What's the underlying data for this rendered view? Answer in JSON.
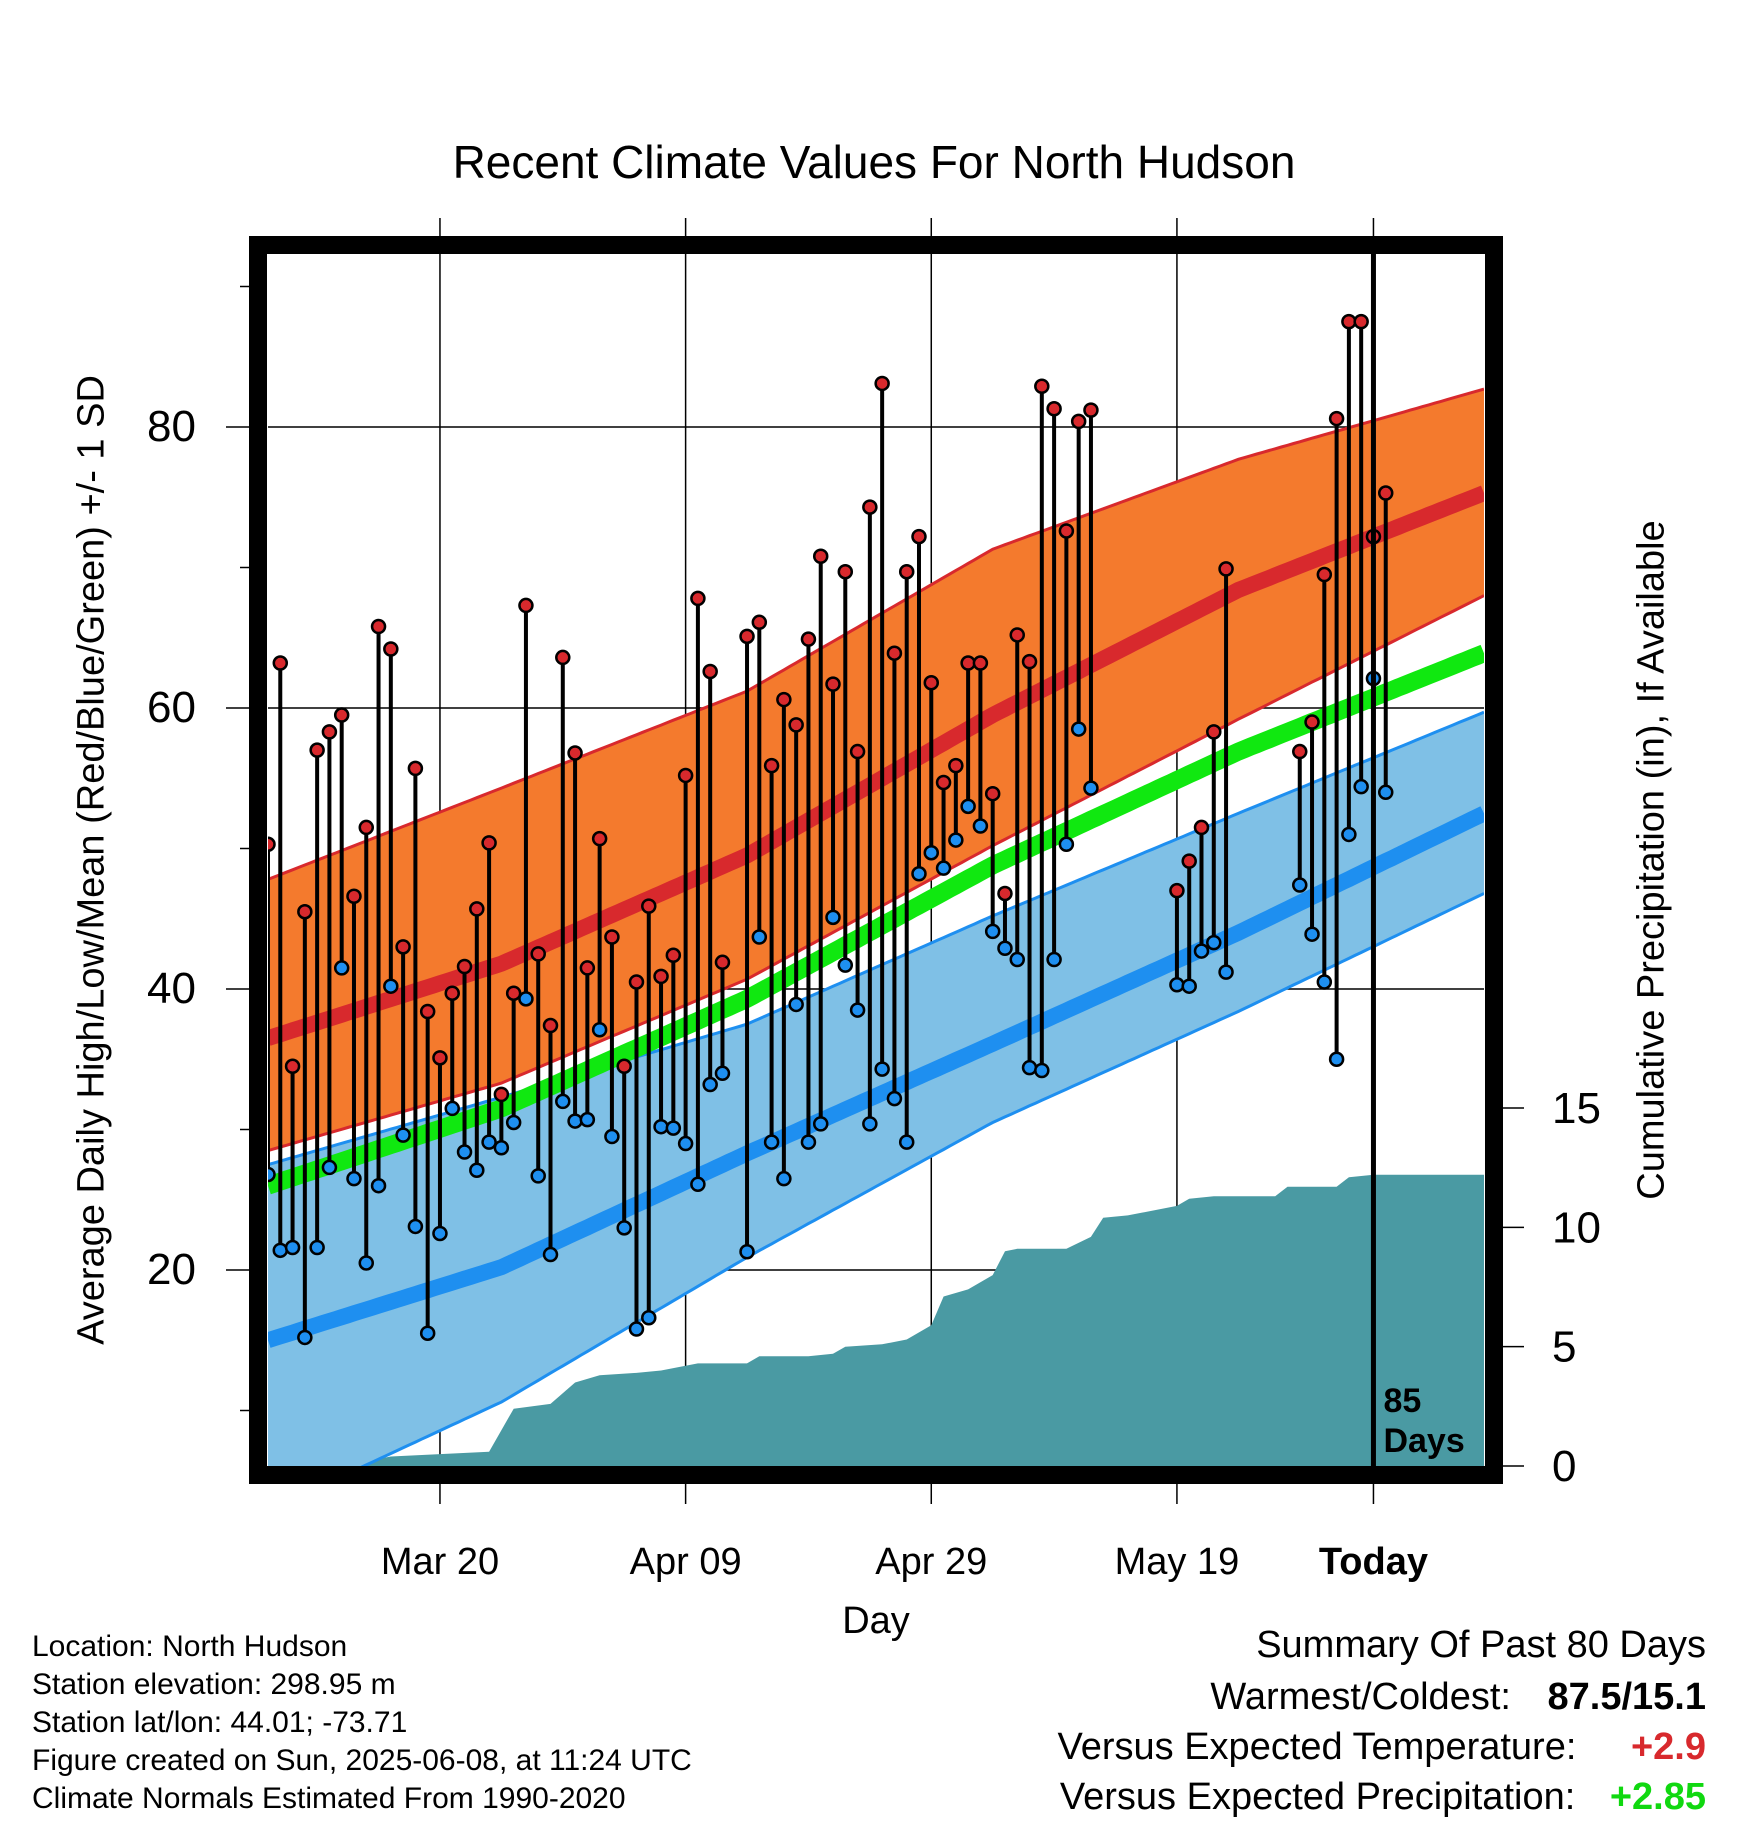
{
  "chart_data": {
    "type": "line",
    "title": "Recent Climate Values For North Hudson",
    "xlabel": "Day",
    "ylabel": "Average Daily High/Low/Mean (Red/Blue/Green) +/- 1 SD",
    "y2label": "Cumulative Precipitation (in), If Available",
    "x_tick_labels": [
      "Mar 20",
      "Apr 09",
      "Apr 29",
      "May 19",
      "Today"
    ],
    "y_ticks": [
      20,
      40,
      60,
      80
    ],
    "y2_ticks": [
      0,
      5,
      10,
      15
    ],
    "ylim": [
      5,
      94
    ],
    "y2lim": [
      0,
      15
    ],
    "grid": true,
    "days_marker": "85",
    "days_marker_unit": "Days",
    "day_range": [
      1,
      100
    ],
    "today_day": 91,
    "normal_high": {
      "days": [
        1,
        20,
        40,
        60,
        80,
        100
      ],
      "values": [
        36.5,
        41.8,
        49.5,
        59.5,
        68.4,
        75.3
      ]
    },
    "normal_low": {
      "days": [
        1,
        20,
        40,
        60,
        80,
        100
      ],
      "values": [
        15,
        20.2,
        28.3,
        36.1,
        44,
        52.5
      ]
    },
    "normal_mean": {
      "days": [
        1,
        20,
        40,
        60,
        80,
        100
      ],
      "values": [
        26,
        31.5,
        39.3,
        48.8,
        56.9,
        63.9
      ]
    },
    "high_sd_upper": {
      "days": [
        1,
        20,
        40,
        60,
        80,
        100
      ],
      "values": [
        47.8,
        54.3,
        61.2,
        71.3,
        77.7,
        82.7
      ]
    },
    "high_sd_lower": {
      "days": [
        1,
        20,
        40,
        60,
        80,
        100
      ],
      "values": [
        28.5,
        33.3,
        40.7,
        50.2,
        59.2,
        68
      ]
    },
    "low_sd_upper": {
      "days": [
        1,
        20,
        40,
        60,
        80,
        100
      ],
      "values": [
        27.5,
        32.3,
        37.5,
        45.2,
        52.5,
        59.7
      ]
    },
    "low_sd_lower": {
      "days": [
        1,
        5,
        20,
        40,
        60,
        80,
        100
      ],
      "values": [
        4,
        4.5,
        10.6,
        20.9,
        30.5,
        38.4,
        46.8
      ]
    },
    "daily_high": [
      50.3,
      63.2,
      34.5,
      45.5,
      57,
      58.3,
      59.5,
      46.6,
      51.5,
      65.8,
      64.2,
      43,
      55.7,
      38.4,
      35.1,
      39.7,
      41.6,
      45.7,
      50.4,
      32.5,
      39.7,
      67.3,
      42.5,
      37.4,
      63.6,
      56.8,
      41.5,
      50.7,
      43.7,
      34.5,
      40.5,
      45.9,
      40.9,
      42.4,
      55.2,
      67.8,
      62.6,
      41.9,
      null,
      65.1,
      66.1,
      55.9,
      60.6,
      58.8,
      64.9,
      70.8,
      61.7,
      69.7,
      56.9,
      74.3,
      83.1,
      63.9,
      69.7,
      72.2,
      61.8,
      54.7,
      55.9,
      63.2,
      63.2,
      53.9,
      46.8,
      65.2,
      63.3,
      82.9,
      81.3,
      72.6,
      80.4,
      81.2,
      null,
      null,
      null,
      null,
      null,
      null,
      47,
      49.1,
      51.5,
      58.3,
      69.9,
      null,
      null,
      null,
      null,
      null,
      56.9,
      59,
      69.5,
      80.6,
      87.5,
      87.5,
      72.2,
      75.3,
      null,
      null,
      null,
      null,
      null,
      null,
      null,
      null
    ],
    "daily_low": [
      26.8,
      21.4,
      21.6,
      15.2,
      21.6,
      27.3,
      41.5,
      26.5,
      20.5,
      26,
      40.2,
      29.6,
      23.1,
      15.5,
      22.6,
      31.5,
      28.4,
      27.1,
      29.1,
      28.7,
      30.5,
      39.3,
      26.7,
      21.1,
      32,
      30.6,
      30.7,
      37.1,
      29.5,
      23,
      15.8,
      16.6,
      30.2,
      30.1,
      29,
      26.1,
      33.2,
      34,
      null,
      21.3,
      43.7,
      29.1,
      26.5,
      38.9,
      29.1,
      30.4,
      45.1,
      41.7,
      38.5,
      30.4,
      34.3,
      32.2,
      29.1,
      48.2,
      49.7,
      48.6,
      50.6,
      53,
      51.6,
      44.1,
      42.9,
      42.1,
      34.4,
      34.2,
      42.1,
      50.3,
      58.5,
      54.3,
      null,
      null,
      null,
      null,
      null,
      null,
      40.3,
      40.2,
      42.7,
      43.3,
      41.2,
      null,
      null,
      null,
      null,
      null,
      47.4,
      43.9,
      40.5,
      35,
      51,
      54.4,
      62.1,
      54,
      null,
      null,
      null,
      null,
      null,
      null,
      null,
      null
    ],
    "cumulative_precip": {
      "days": [
        1,
        7,
        9,
        11,
        15,
        19,
        21,
        24,
        26,
        28,
        31,
        33,
        35,
        36,
        38,
        40,
        41,
        45,
        47,
        48,
        51,
        53,
        55,
        56,
        58,
        60,
        61,
        62,
        66,
        68,
        69,
        71,
        75,
        76,
        78,
        80,
        83,
        84,
        86,
        88,
        89,
        91,
        100
      ],
      "values": [
        0,
        0,
        0.2,
        0.4,
        0.5,
        0.6,
        2.4,
        2.6,
        3.5,
        3.8,
        3.9,
        4,
        4.2,
        4.3,
        4.3,
        4.3,
        4.6,
        4.6,
        4.7,
        5,
        5.1,
        5.3,
        5.9,
        7.1,
        7.4,
        8,
        9,
        9.1,
        9.1,
        9.6,
        10.4,
        10.5,
        10.9,
        11.2,
        11.3,
        11.3,
        11.3,
        11.7,
        11.7,
        11.7,
        12.1,
        12.2,
        12.2
      ]
    },
    "colors": {
      "high_band": "#f47a2d",
      "high_line": "#d8292d",
      "low_band": "#7fc0e6",
      "low_line": "#1e8ff0",
      "mean_line": "#10e810",
      "precip": "#4a9aa3",
      "high_dot": "#d8292d",
      "low_dot": "#1e8ff0",
      "warm_value": "#d8292d",
      "precip_value": "#10d810"
    }
  },
  "footer": {
    "location": "Location: North Hudson",
    "elevation": "Station elevation: 298.95 m",
    "latlon": "Station lat/lon: 44.01; -73.71",
    "created": "Figure created on Sun, 2025-06-08, at 11:24 UTC",
    "normals": "Climate Normals Estimated From 1990-2020"
  },
  "summary": {
    "heading": "Summary Of Past 80 Days",
    "warmest_coldest_label": "Warmest/Coldest:",
    "warmest_coldest_value": "87.5/15.1",
    "temp_label": "Versus Expected Temperature:",
    "temp_value": "+2.9",
    "precip_label": "Versus Expected Precipitation:",
    "precip_value": "+2.85"
  }
}
